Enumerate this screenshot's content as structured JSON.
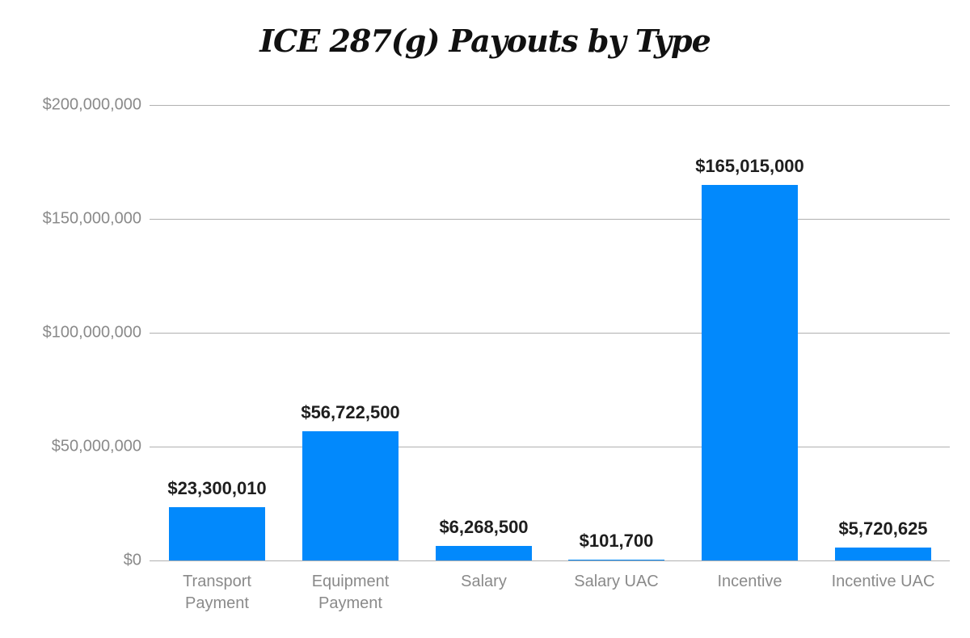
{
  "chart_data": {
    "type": "bar",
    "title": "ICE 287(g) Payouts by Type",
    "xlabel": "",
    "ylabel": "",
    "ylim": [
      0,
      200000000
    ],
    "yticks": [
      0,
      50000000,
      100000000,
      150000000,
      200000000
    ],
    "ytick_labels": [
      "$0",
      "$50,000,000",
      "$100,000,000",
      "$150,000,000",
      "$200,000,000"
    ],
    "categories": [
      "Transport Payment",
      "Equipment Payment",
      "Salary",
      "Salary UAC",
      "Incentive",
      "Incentive UAC"
    ],
    "values": [
      23300010,
      56722500,
      6268500,
      101700,
      165015000,
      5720625
    ],
    "value_labels": [
      "$23,300,010",
      "$56,722,500",
      "$6,268,500",
      "$101,700",
      "$165,015,000",
      "$5,720,625"
    ],
    "grid": true,
    "legend": null,
    "bar_color": "#0289fc"
  },
  "xlabels": [
    [
      "Transport",
      "Payment"
    ],
    [
      "Equipment",
      "Payment"
    ],
    [
      "Salary"
    ],
    [
      "Salary UAC"
    ],
    [
      "Incentive"
    ],
    [
      "Incentive UAC"
    ]
  ]
}
